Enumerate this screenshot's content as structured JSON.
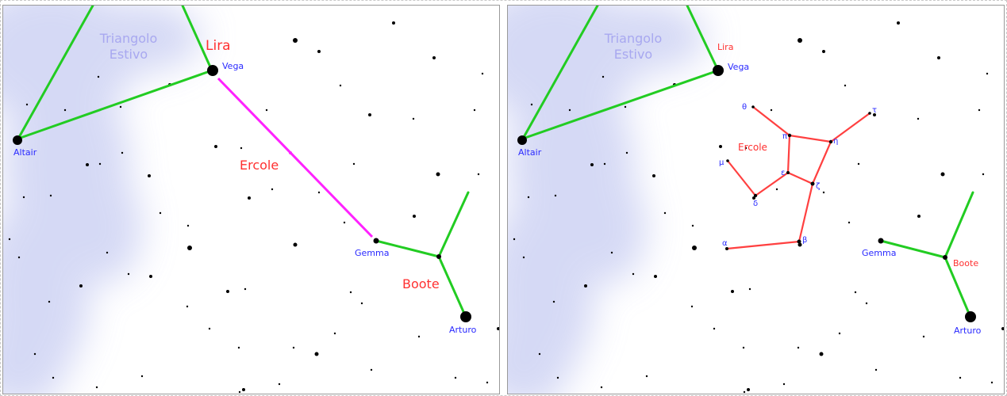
{
  "colors": {
    "asterism_line": "#22cc22",
    "pointer_line": "#ff22ff",
    "hercules_line": "#ff4040",
    "constellation_label": "#ff3030",
    "star_label": "#2a2aff",
    "asterism_label": "#a8a8f0",
    "milky_way": "#c8cdf2"
  },
  "left_panel": {
    "asterism_label_line1": "Triangolo",
    "asterism_label_line2": "Estivo",
    "lira": "Lira",
    "vega": "Vega",
    "altair": "Altair",
    "ercole": "Ercole",
    "gemma": "Gemma",
    "boote": "Boote",
    "arturo": "Arturo"
  },
  "right_panel": {
    "asterism_label_line1": "Triangolo",
    "asterism_label_line2": "Estivo",
    "lira": "Lira",
    "vega": "Vega",
    "altair": "Altair",
    "ercole": "Ercole",
    "gemma": "Gemma",
    "boote": "Boote",
    "arturo": "Arturo",
    "greek": {
      "theta": "θ",
      "pi": "π",
      "eta": "η",
      "tau": "τ",
      "mu": "μ",
      "epsilon": "ε",
      "zeta": "ζ",
      "delta": "δ",
      "alpha": "α",
      "beta": "β"
    }
  }
}
